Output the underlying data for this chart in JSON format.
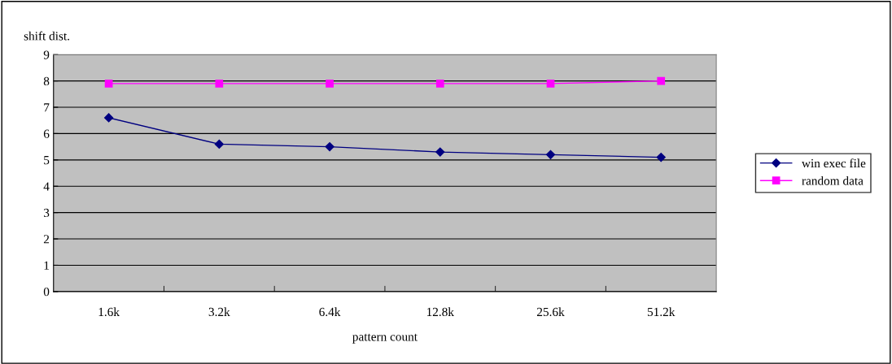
{
  "chart_data": {
    "type": "line",
    "ylabel": "shift dist.",
    "xlabel": "pattern count",
    "categories": [
      "1.6k",
      "3.2k",
      "6.4k",
      "12.8k",
      "25.6k",
      "51.2k"
    ],
    "series": [
      {
        "name": "win exec file",
        "color": "#000080",
        "marker": "diamond",
        "values": [
          6.6,
          5.6,
          5.5,
          5.3,
          5.2,
          5.1
        ]
      },
      {
        "name": "random data",
        "color": "#ff00ff",
        "marker": "square",
        "values": [
          7.9,
          7.9,
          7.9,
          7.9,
          7.9,
          8.0
        ]
      }
    ],
    "ylim": [
      0,
      9
    ],
    "yticks": [
      0,
      1,
      2,
      3,
      4,
      5,
      6,
      7,
      8,
      9
    ],
    "grid": "y",
    "legend": "right",
    "line_style": "solid"
  }
}
